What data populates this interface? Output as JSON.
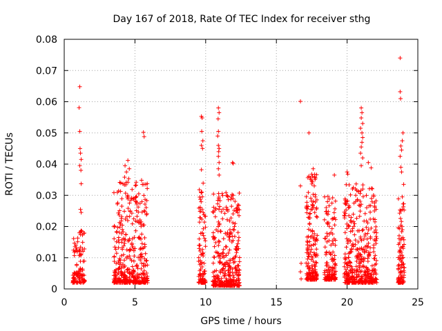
{
  "chart_data": {
    "type": "scatter",
    "title": "Day 167 of 2018, Rate Of TEC Index for receiver sthg",
    "xlabel": "GPS time / hours",
    "ylabel": "ROTI / TECUs",
    "xlim": [
      0,
      25
    ],
    "ylim": [
      0,
      0.08
    ],
    "xticks": [
      0,
      5,
      10,
      15,
      20,
      25
    ],
    "yticks": [
      0,
      0.01,
      0.02,
      0.03,
      0.04,
      0.05,
      0.06,
      0.07,
      0.08
    ],
    "grid": true,
    "marker": "+",
    "color": "#ff0000",
    "clusters": [
      {
        "t0": 0.6,
        "t1": 1.45,
        "n": 110,
        "base": 0.002,
        "peak": 0.019
      },
      {
        "t0": 3.5,
        "t1": 5.9,
        "n": 420,
        "base": 0.002,
        "peak": 0.036
      },
      {
        "t0": 9.5,
        "t1": 10.0,
        "n": 110,
        "base": 0.002,
        "peak": 0.034
      },
      {
        "t0": 10.5,
        "t1": 12.4,
        "n": 360,
        "base": 0.001,
        "peak": 0.031
      },
      {
        "t0": 17.1,
        "t1": 17.9,
        "n": 190,
        "base": 0.003,
        "peak": 0.037
      },
      {
        "t0": 18.4,
        "t1": 19.2,
        "n": 150,
        "base": 0.003,
        "peak": 0.03
      },
      {
        "t0": 19.8,
        "t1": 22.1,
        "n": 420,
        "base": 0.002,
        "peak": 0.034
      },
      {
        "t0": 23.6,
        "t1": 24.05,
        "n": 100,
        "base": 0.002,
        "peak": 0.03
      }
    ],
    "outliers": [
      {
        "x": 1.1,
        "y": 0.0648
      },
      {
        "x": 1.05,
        "y": 0.0581
      },
      {
        "x": 1.1,
        "y": 0.0505
      },
      {
        "x": 1.12,
        "y": 0.045
      },
      {
        "x": 1.15,
        "y": 0.0435
      },
      {
        "x": 1.2,
        "y": 0.0415
      },
      {
        "x": 1.1,
        "y": 0.0395
      },
      {
        "x": 1.18,
        "y": 0.038
      },
      {
        "x": 1.2,
        "y": 0.0337
      },
      {
        "x": 1.15,
        "y": 0.0255
      },
      {
        "x": 1.2,
        "y": 0.0245
      },
      {
        "x": 4.5,
        "y": 0.0412
      },
      {
        "x": 4.3,
        "y": 0.0395
      },
      {
        "x": 4.6,
        "y": 0.0385
      },
      {
        "x": 4.4,
        "y": 0.0375
      },
      {
        "x": 5.6,
        "y": 0.0502
      },
      {
        "x": 5.65,
        "y": 0.0488
      },
      {
        "x": 9.7,
        "y": 0.0553
      },
      {
        "x": 9.75,
        "y": 0.0548
      },
      {
        "x": 9.72,
        "y": 0.0505
      },
      {
        "x": 9.8,
        "y": 0.0475
      },
      {
        "x": 9.7,
        "y": 0.046
      },
      {
        "x": 9.78,
        "y": 0.045
      },
      {
        "x": 9.7,
        "y": 0.0382
      },
      {
        "x": 10.9,
        "y": 0.058
      },
      {
        "x": 10.95,
        "y": 0.0565
      },
      {
        "x": 10.88,
        "y": 0.0545
      },
      {
        "x": 10.9,
        "y": 0.0505
      },
      {
        "x": 10.85,
        "y": 0.049
      },
      {
        "x": 10.9,
        "y": 0.046
      },
      {
        "x": 10.95,
        "y": 0.045
      },
      {
        "x": 10.92,
        "y": 0.044
      },
      {
        "x": 10.9,
        "y": 0.0425
      },
      {
        "x": 10.95,
        "y": 0.0405
      },
      {
        "x": 10.9,
        "y": 0.0385
      },
      {
        "x": 10.95,
        "y": 0.0365
      },
      {
        "x": 11.9,
        "y": 0.0405
      },
      {
        "x": 11.95,
        "y": 0.0402
      },
      {
        "x": 16.7,
        "y": 0.0601
      },
      {
        "x": 16.7,
        "y": 0.033
      },
      {
        "x": 16.75,
        "y": 0.0082
      },
      {
        "x": 16.7,
        "y": 0.0055
      },
      {
        "x": 16.75,
        "y": 0.0032
      },
      {
        "x": 17.3,
        "y": 0.05
      },
      {
        "x": 17.6,
        "y": 0.0385
      },
      {
        "x": 19.1,
        "y": 0.0365
      },
      {
        "x": 20.0,
        "y": 0.0375
      },
      {
        "x": 20.05,
        "y": 0.0368
      },
      {
        "x": 21.0,
        "y": 0.058
      },
      {
        "x": 21.05,
        "y": 0.0565
      },
      {
        "x": 21.0,
        "y": 0.0548
      },
      {
        "x": 21.1,
        "y": 0.053
      },
      {
        "x": 20.95,
        "y": 0.0515
      },
      {
        "x": 21.05,
        "y": 0.05
      },
      {
        "x": 21.1,
        "y": 0.0485
      },
      {
        "x": 21.05,
        "y": 0.047
      },
      {
        "x": 21.0,
        "y": 0.0455
      },
      {
        "x": 20.95,
        "y": 0.0435
      },
      {
        "x": 21.1,
        "y": 0.042
      },
      {
        "x": 21.0,
        "y": 0.0395
      },
      {
        "x": 21.5,
        "y": 0.0405
      },
      {
        "x": 21.7,
        "y": 0.0388
      },
      {
        "x": 22.1,
        "y": 0.003
      },
      {
        "x": 23.75,
        "y": 0.074
      },
      {
        "x": 23.75,
        "y": 0.0632
      },
      {
        "x": 23.78,
        "y": 0.061
      },
      {
        "x": 23.95,
        "y": 0.05
      },
      {
        "x": 23.9,
        "y": 0.0475
      },
      {
        "x": 23.8,
        "y": 0.0458
      },
      {
        "x": 23.85,
        "y": 0.0445
      },
      {
        "x": 23.75,
        "y": 0.0425
      },
      {
        "x": 23.8,
        "y": 0.039
      },
      {
        "x": 23.85,
        "y": 0.0375
      },
      {
        "x": 24.0,
        "y": 0.0335
      },
      {
        "x": 23.9,
        "y": 0.0295
      }
    ]
  }
}
